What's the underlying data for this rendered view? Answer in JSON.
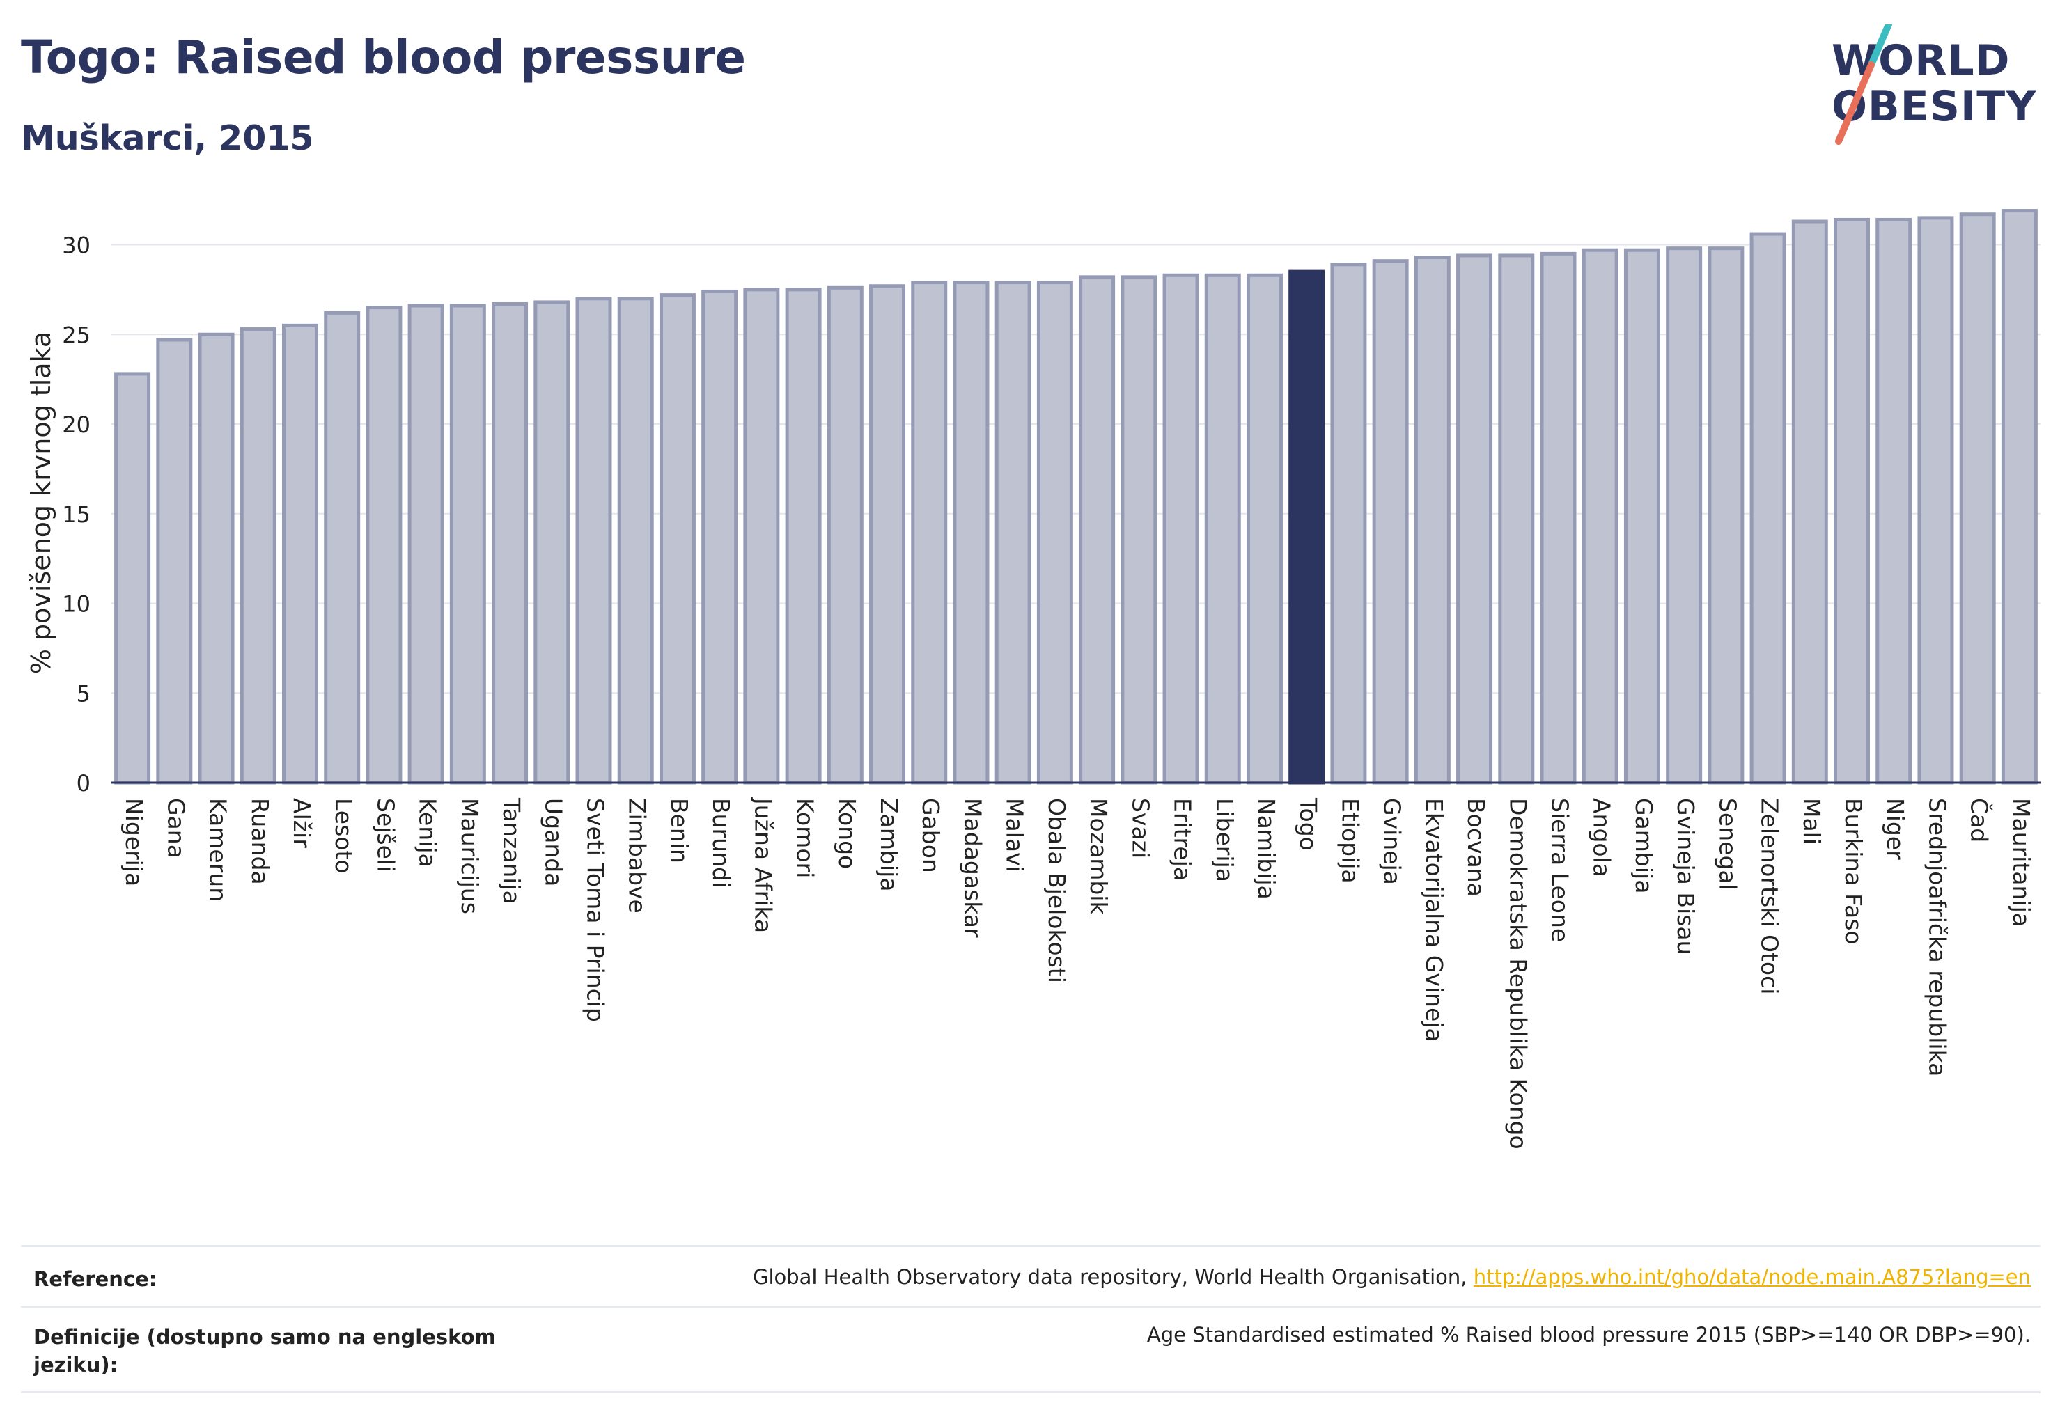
{
  "title": "Togo: Raised blood pressure",
  "subtitle": "Muškarci, 2015",
  "logo": {
    "line1": "WORLD",
    "line2": "OBESITY",
    "slash_color": "#e8705b",
    "slash_color_2": "#3bbcc0"
  },
  "colors": {
    "primary": "#2b3560",
    "bar_fill": "#bfc3d1",
    "bar_edge": "#959bb5",
    "highlight": "#2b3560",
    "link": "#f0b400"
  },
  "chart_data": {
    "type": "bar",
    "ylabel": "% povišenog krvnog tlaka",
    "ylim": [
      0,
      32
    ],
    "yticks": [
      0,
      5,
      10,
      15,
      20,
      25,
      30
    ],
    "grid": true,
    "highlight": "Togo",
    "categories": [
      "Nigerija",
      "Gana",
      "Kamerun",
      "Ruanda",
      "Alžir",
      "Lesoto",
      "Sejšeli",
      "Kenija",
      "Mauricijus",
      "Tanzanija",
      "Uganda",
      "Sveti Toma i Princip",
      "Zimbabve",
      "Benin",
      "Burundi",
      "Južna Afrika",
      "Komori",
      "Kongo",
      "Zambija",
      "Gabon",
      "Madagaskar",
      "Malavi",
      "Obala Bjelokosti",
      "Mozambik",
      "Svazi",
      "Eritreja",
      "Liberija",
      "Namibija",
      "Togo",
      "Etiopija",
      "Gvineja",
      "Ekvatorijalna Gvineja",
      "Bocvana",
      "Demokratska Republika Kongo",
      "Sierra Leone",
      "Angola",
      "Gambija",
      "Gvineja Bisau",
      "Senegal",
      "Zelenortski Otoci",
      "Mali",
      "Burkina Faso",
      "Niger",
      "Srednjoafrička republika",
      "Čad",
      "Mauritanija"
    ],
    "values": [
      22.8,
      24.7,
      25.0,
      25.3,
      25.5,
      26.2,
      26.5,
      26.6,
      26.6,
      26.7,
      26.8,
      27.0,
      27.0,
      27.2,
      27.4,
      27.5,
      27.5,
      27.6,
      27.7,
      27.9,
      27.9,
      27.9,
      27.9,
      28.2,
      28.2,
      28.3,
      28.3,
      28.3,
      28.5,
      28.9,
      29.1,
      29.3,
      29.4,
      29.4,
      29.5,
      29.7,
      29.7,
      29.8,
      29.8,
      30.6,
      31.3,
      31.4,
      31.4,
      31.5,
      31.7,
      31.9
    ]
  },
  "footer": {
    "reference_label": "Reference:",
    "reference_text": "Global Health Observatory data repository, World Health Organisation,",
    "reference_link": "http://apps.who.int/gho/data/node.main.A875?lang=en",
    "definition_label": "Definicije (dostupno samo na engleskom jeziku):",
    "definition_text": "Age Standardised estimated % Raised blood pressure 2015 (SBP>=140 OR DBP>=90)."
  }
}
